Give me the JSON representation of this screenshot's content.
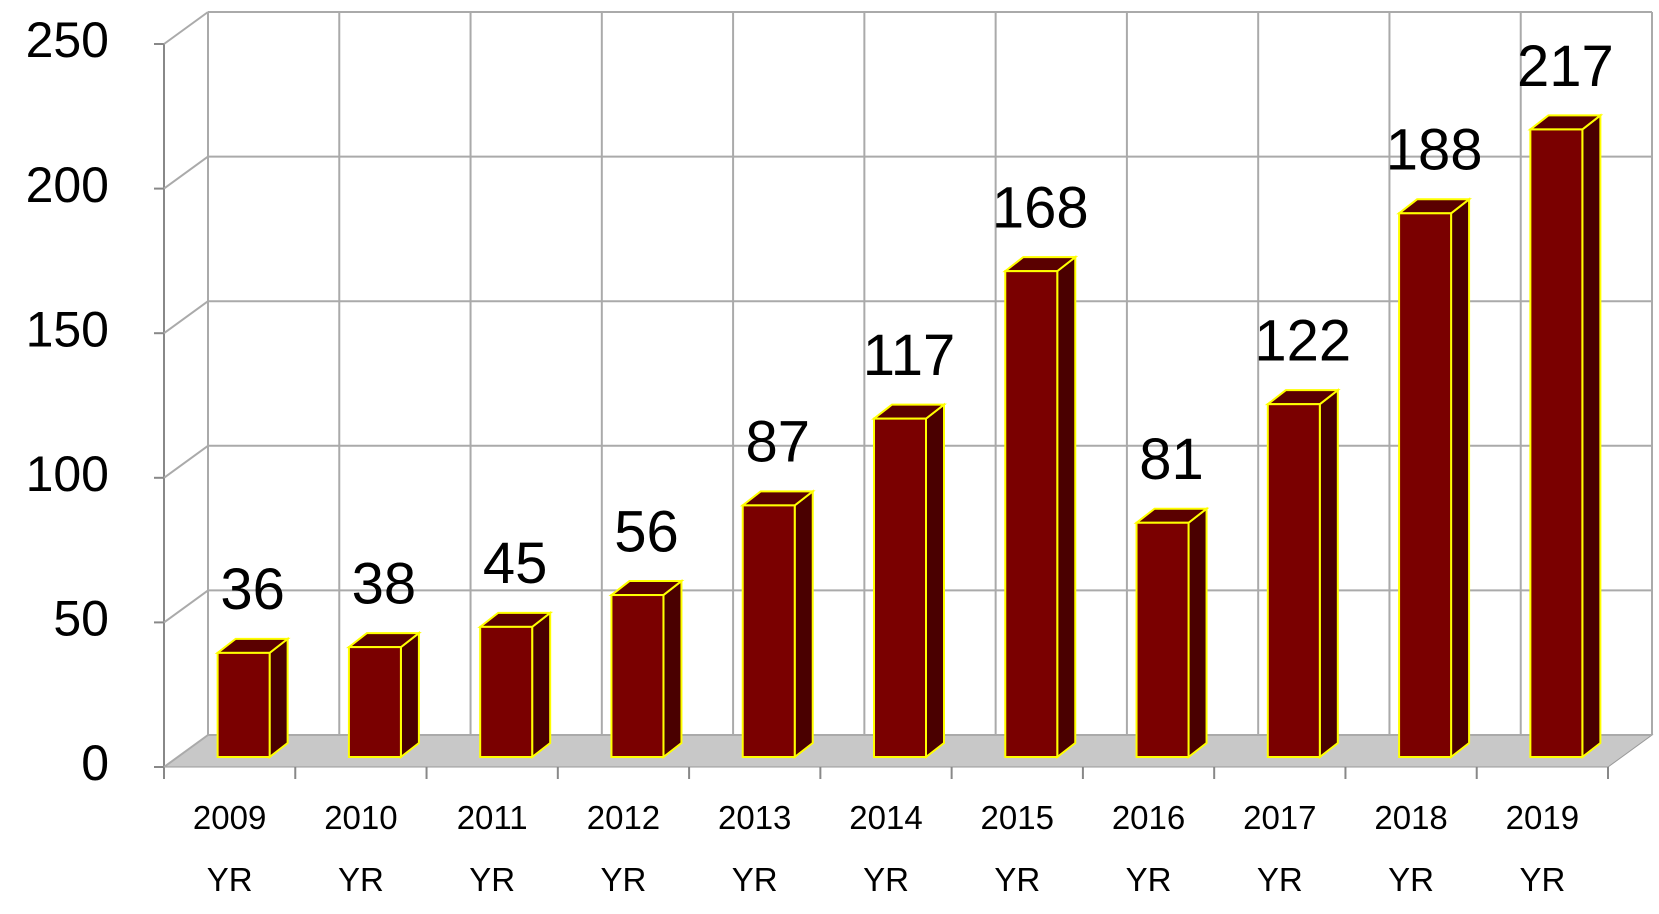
{
  "chart_data": {
    "type": "bar3d",
    "categories": [
      "2009 YR",
      "2010 YR",
      "2011 YR",
      "2012 YR",
      "2013 YR",
      "2014 YR",
      "2015 YR",
      "2016 YR",
      "2017 YR",
      "2018 YR",
      "2019 YR"
    ],
    "values": [
      36,
      38,
      45,
      56,
      87,
      117,
      168,
      81,
      122,
      188,
      217
    ],
    "color": "#7a0000",
    "edge_color": "#ffff00",
    "ylim": [
      0,
      250
    ],
    "yticks": [
      0,
      50,
      100,
      150,
      200,
      250
    ],
    "grid": true
  }
}
